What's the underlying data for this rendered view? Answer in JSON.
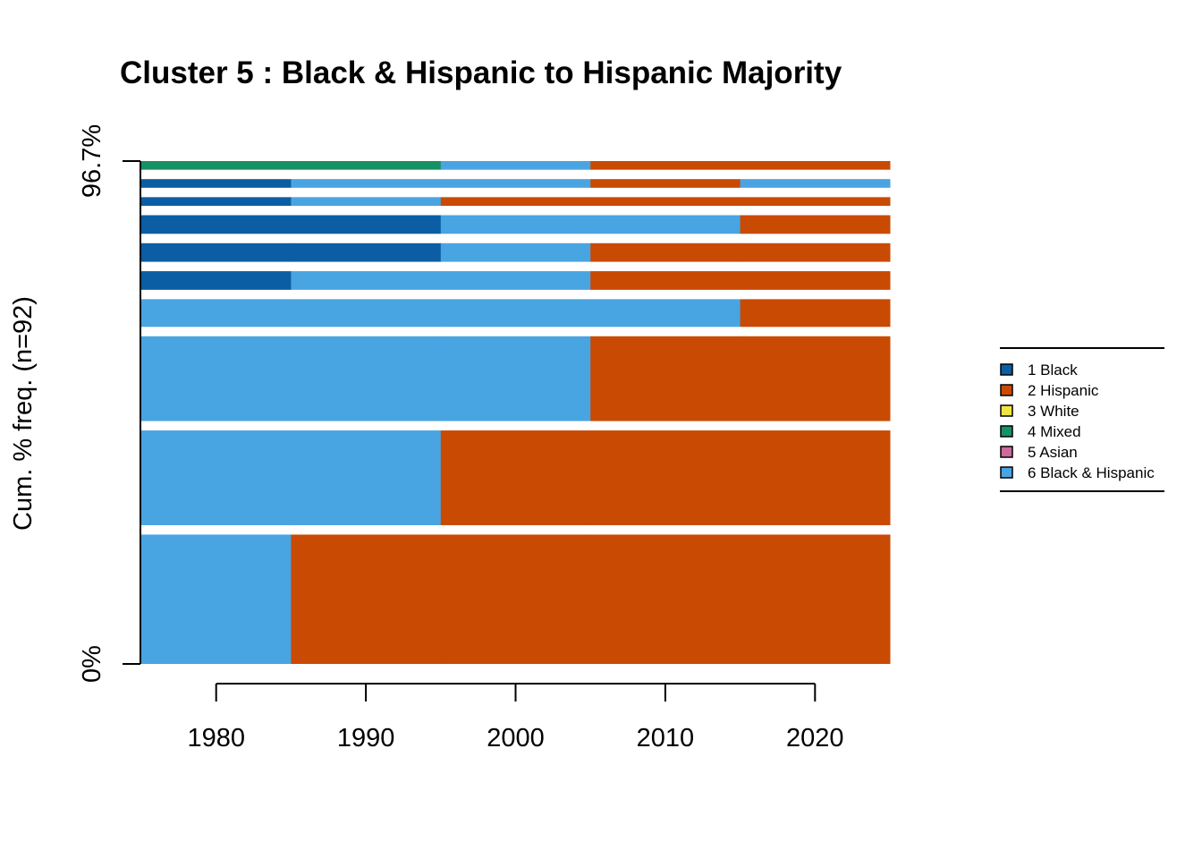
{
  "chart_data": {
    "type": "bar",
    "subtype": "sequence-frequency-plot",
    "title": "Cluster 5 : Black & Hispanic to Hispanic Majority",
    "xlabel": "",
    "ylabel": "Cum. % freq. (n=92)",
    "y_tick_labels": [
      "0%",
      "96.7%"
    ],
    "ylim": [
      0,
      96.7
    ],
    "x_ticks": [
      1980,
      1990,
      2000,
      2010,
      2020
    ],
    "x_tick_labels": [
      "1980",
      "1990",
      "2000",
      "2010",
      "2020"
    ],
    "xlim": [
      1975,
      2025
    ],
    "legend_position": "right",
    "legend": [
      {
        "code": 1,
        "label": "1 Black",
        "color": "#0b5ea3"
      },
      {
        "code": 2,
        "label": "2 Hispanic",
        "color": "#c94a03"
      },
      {
        "code": 3,
        "label": "3 White",
        "color": "#f0e442"
      },
      {
        "code": 4,
        "label": "4 Mixed",
        "color": "#169165"
      },
      {
        "code": 5,
        "label": "5 Asian",
        "color": "#cc6a9c"
      },
      {
        "code": 6,
        "label": "6 Black & Hispanic",
        "color": "#49a4e2"
      }
    ],
    "legend_visible_last_label": "6 Black & Hispani",
    "sequences": [
      {
        "rank": 1,
        "states": [
          6,
          2,
          2,
          2,
          2
        ],
        "freq_pct": 29.9
      },
      {
        "rank": 2,
        "states": [
          6,
          6,
          2,
          2,
          2
        ],
        "freq_pct": 21.9
      },
      {
        "rank": 3,
        "states": [
          6,
          6,
          6,
          2,
          2
        ],
        "freq_pct": 19.6
      },
      {
        "rank": 4,
        "states": [
          6,
          6,
          6,
          6,
          2
        ],
        "freq_pct": 6.4
      },
      {
        "rank": 5,
        "states": [
          1,
          6,
          6,
          2,
          2
        ],
        "freq_pct": 4.3
      },
      {
        "rank": 6,
        "states": [
          1,
          1,
          6,
          2,
          2
        ],
        "freq_pct": 4.3
      },
      {
        "rank": 7,
        "states": [
          1,
          1,
          6,
          6,
          2
        ],
        "freq_pct": 4.3
      },
      {
        "rank": 8,
        "states": [
          1,
          6,
          2,
          2,
          2
        ],
        "freq_pct": 2.0
      },
      {
        "rank": 9,
        "states": [
          1,
          6,
          6,
          2,
          6
        ],
        "freq_pct": 2.0
      },
      {
        "rank": 10,
        "states": [
          4,
          4,
          6,
          2,
          2
        ],
        "freq_pct": 2.0
      }
    ]
  }
}
